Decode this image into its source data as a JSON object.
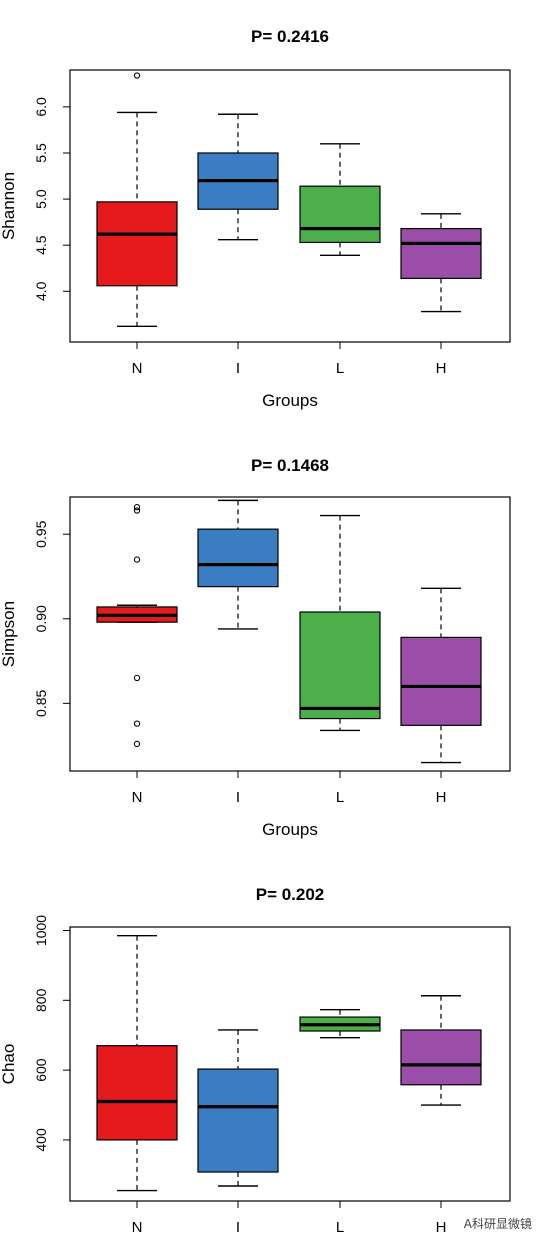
{
  "chart_data": [
    {
      "type": "boxplot",
      "title": "P= 0.2416",
      "xlabel": "Groups",
      "ylabel": "Shannon",
      "categories": [
        "N",
        "I",
        "L",
        "H"
      ],
      "colors": [
        "#e41a1c",
        "#3a7dc2",
        "#4daf4a",
        "#9a4ea8"
      ],
      "ylim": [
        3.45,
        6.4
      ],
      "yticks": [
        4.0,
        4.5,
        5.0,
        5.5,
        6.0
      ],
      "ytick_labels": [
        "4.0",
        "4.5",
        "5.0",
        "5.5",
        "6.0"
      ],
      "boxes": [
        {
          "min": 3.62,
          "q1": 4.06,
          "median": 4.62,
          "q3": 4.97,
          "max": 5.94,
          "outliers": [
            6.34
          ]
        },
        {
          "min": 4.56,
          "q1": 4.89,
          "median": 5.2,
          "q3": 5.5,
          "max": 5.92,
          "outliers": []
        },
        {
          "min": 4.39,
          "q1": 4.53,
          "median": 4.68,
          "q3": 5.14,
          "max": 5.6,
          "outliers": []
        },
        {
          "min": 3.78,
          "q1": 4.14,
          "median": 4.52,
          "q3": 4.68,
          "max": 4.84,
          "outliers": []
        }
      ]
    },
    {
      "type": "boxplot",
      "title": "P= 0.1468",
      "xlabel": "Groups",
      "ylabel": "Simpson",
      "categories": [
        "N",
        "I",
        "L",
        "H"
      ],
      "colors": [
        "#e41a1c",
        "#3a7dc2",
        "#4daf4a",
        "#9a4ea8"
      ],
      "ylim": [
        0.81,
        0.972
      ],
      "yticks": [
        0.85,
        0.9,
        0.95
      ],
      "ytick_labels": [
        "0.85",
        "0.90",
        "0.95"
      ],
      "boxes": [
        {
          "min": 0.898,
          "q1": 0.898,
          "median": 0.902,
          "q3": 0.907,
          "max": 0.908,
          "outliers": [
            0.966,
            0.964,
            0.935,
            0.865,
            0.838,
            0.826
          ]
        },
        {
          "min": 0.894,
          "q1": 0.919,
          "median": 0.932,
          "q3": 0.953,
          "max": 0.97,
          "outliers": []
        },
        {
          "min": 0.834,
          "q1": 0.841,
          "median": 0.847,
          "q3": 0.904,
          "max": 0.961,
          "outliers": []
        },
        {
          "min": 0.815,
          "q1": 0.837,
          "median": 0.86,
          "q3": 0.889,
          "max": 0.918,
          "outliers": []
        }
      ]
    },
    {
      "type": "boxplot",
      "title": "P= 0.202",
      "xlabel": "",
      "ylabel": "Chao",
      "categories": [
        "N",
        "I",
        "L",
        "H"
      ],
      "colors": [
        "#e41a1c",
        "#3a7dc2",
        "#4daf4a",
        "#9a4ea8"
      ],
      "ylim": [
        225,
        1010
      ],
      "yticks": [
        400,
        600,
        800,
        1000
      ],
      "ytick_labels": [
        "400",
        "600",
        "800",
        "1000"
      ],
      "boxes": [
        {
          "min": 255,
          "q1": 400,
          "median": 510,
          "q3": 670,
          "max": 985,
          "outliers": []
        },
        {
          "min": 268,
          "q1": 308,
          "median": 495,
          "q3": 603,
          "max": 715,
          "outliers": []
        },
        {
          "min": 693,
          "q1": 712,
          "median": 730,
          "q3": 752,
          "max": 773,
          "outliers": []
        },
        {
          "min": 500,
          "q1": 558,
          "median": 615,
          "q3": 715,
          "max": 813,
          "outliers": []
        }
      ]
    }
  ],
  "watermark": "A科研显微镜"
}
